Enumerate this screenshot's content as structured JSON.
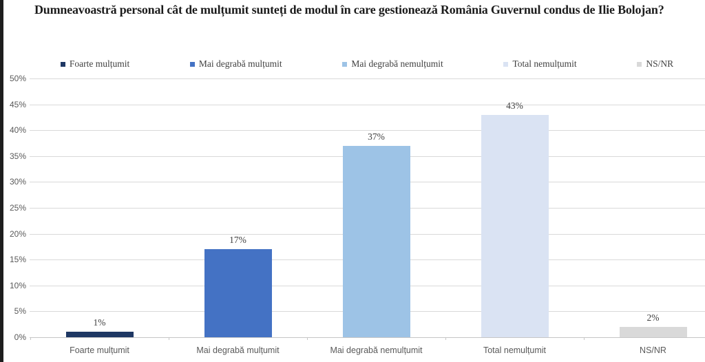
{
  "page": {
    "title": "Dumneavoastră personal cât de mulțumit sunteți de modul în care gestionează România Guvernul condus de Ilie Bolojan?"
  },
  "chart_data": {
    "type": "bar",
    "title": "Dumneavoastră personal cât de mulțumit sunteți de modul în care gestionează România Guvernul condus de Ilie Bolojan?",
    "categories": [
      "Foarte mulțumit",
      "Mai degrabă mulțumit",
      "Mai degrabă nemulțumit",
      "Total nemulțumit",
      "NS/NR"
    ],
    "values": [
      1,
      17,
      37,
      43,
      2
    ],
    "data_labels": [
      "1%",
      "17%",
      "37%",
      "43%",
      "2%"
    ],
    "bar_colors": [
      "#1F3864",
      "#4472C4",
      "#9DC3E6",
      "#DAE3F3",
      "#D9D9D9"
    ],
    "legend": [
      {
        "label": "Foarte mulțumit",
        "color": "#1F3864"
      },
      {
        "label": "Mai degrabă mulțumit",
        "color": "#4472C4"
      },
      {
        "label": "Mai degrabă nemulțumit",
        "color": "#9DC3E6"
      },
      {
        "label": "Total nemulțumit",
        "color": "#DAE3F3"
      },
      {
        "label": "NS/NR",
        "color": "#D9D9D9"
      }
    ],
    "legend_position": "top",
    "xlabel": "",
    "ylabel": "",
    "ylim": [
      0,
      50
    ],
    "ytick_values": [
      0,
      5,
      10,
      15,
      20,
      25,
      30,
      35,
      40,
      45,
      50
    ],
    "ytick_labels": [
      "0%",
      "5%",
      "10%",
      "15%",
      "20%",
      "25%",
      "30%",
      "35%",
      "40%",
      "45%",
      "50%"
    ],
    "grid": true
  },
  "colors": {
    "page_background": "#FFFFFF",
    "left_border": "#1D1D1D",
    "title_text": "#1C1C1C",
    "axis_label_text": "#595959",
    "data_label_text": "#404040",
    "legend_text": "#404040",
    "gridline": "#D9D9D9",
    "axis_line": "#C6C6C6"
  }
}
